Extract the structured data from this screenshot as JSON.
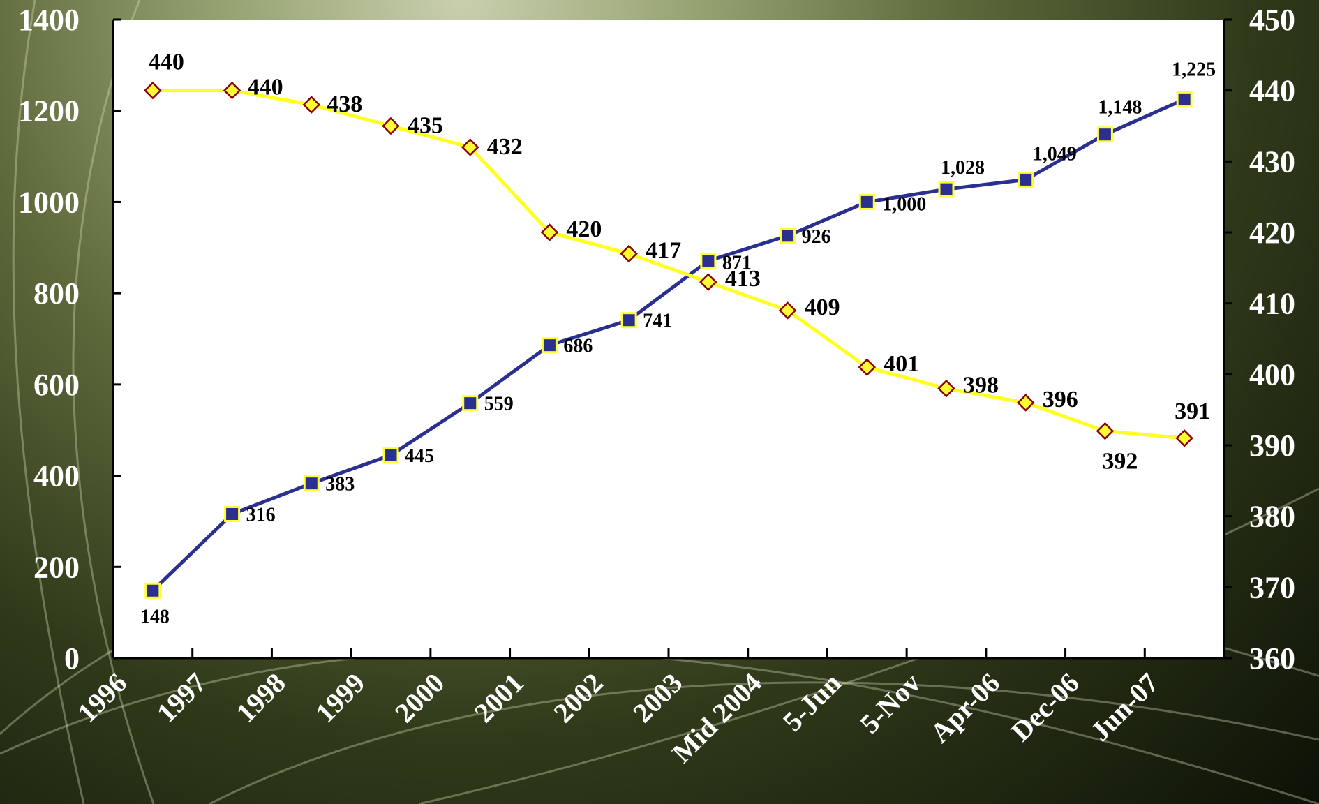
{
  "chart_data": {
    "type": "line",
    "categories": [
      "1996",
      "1997",
      "1998",
      "1999",
      "2000",
      "2001",
      "2002",
      "2003",
      "Mid 2004",
      "5-Jun",
      "5-Nov",
      "Apr-06",
      "Dec-06",
      "Jun-07"
    ],
    "y_left": {
      "ticks": [
        "0",
        "200",
        "400",
        "600",
        "800",
        "1000",
        "1200",
        "1400"
      ],
      "min": 0,
      "max": 1400
    },
    "y_right": {
      "ticks": [
        "360",
        "370",
        "380",
        "390",
        "400",
        "410",
        "420",
        "430",
        "440",
        "450"
      ],
      "min": 360,
      "max": 450
    },
    "grid": false,
    "legend": "none",
    "series": [
      {
        "axis": "left",
        "marker": "square",
        "color": "#2b2f8f",
        "marker_fill": "#2b2f8f",
        "marker_edge": "#ffff33",
        "values": [
          148,
          316,
          383,
          445,
          559,
          686,
          741,
          871,
          926,
          1000,
          1028,
          1049,
          1148,
          1225
        ],
        "labels": [
          "148",
          "316",
          "383",
          "445",
          "559",
          "686",
          "741",
          "871",
          "926",
          "1,000",
          "1,028",
          "1,049",
          "1,148",
          "1,225"
        ]
      },
      {
        "axis": "right",
        "marker": "diamond",
        "color": "#ffff22",
        "marker_fill": "#ffff33",
        "marker_edge": "#8b0000",
        "values": [
          440,
          440,
          438,
          435,
          432,
          420,
          417,
          413,
          409,
          401,
          398,
          396,
          392,
          391
        ],
        "labels": [
          "440",
          "440",
          "438",
          "435",
          "432",
          "420",
          "417",
          "413",
          "409",
          "401",
          "398",
          "396",
          "392",
          "391"
        ]
      }
    ],
    "colors": {
      "plot_background": "#ffffff",
      "axis_color": "#000000",
      "tick_label_color": "#ffffff"
    }
  }
}
